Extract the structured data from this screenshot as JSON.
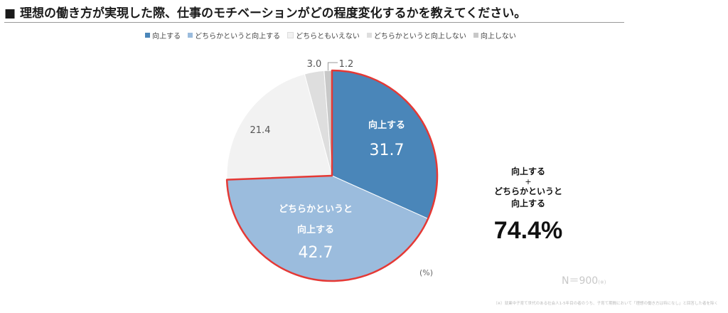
{
  "title": "■ 理想の働き方が実現した際、仕事のモチベーションがどの程度変化するかを教えてください。",
  "legend": [
    {
      "label": "向上する",
      "color": "#4a86b9"
    },
    {
      "label": "どちらかというと向上する",
      "color": "#9bbcdd"
    },
    {
      "label": "どちらともいえない",
      "color": "#f2f2f2"
    },
    {
      "label": "どちらかというと向上しない",
      "color": "#dedede"
    },
    {
      "label": "向上しない",
      "color": "#c8c8c8"
    }
  ],
  "chart_data": {
    "type": "pie",
    "unit": "(%)",
    "slices": [
      {
        "label": "向上する",
        "value": 31.7,
        "color": "#4a86b9",
        "label_color": "#ffffff"
      },
      {
        "label": "どちらかというと向上する",
        "value": 42.7,
        "color": "#9bbcdd",
        "label_color": "#ffffff"
      },
      {
        "label": "どちらともいえない",
        "value": 21.4,
        "color": "#f2f2f2",
        "label_color": "#555555"
      },
      {
        "label": "どちらかというと向上しない",
        "value": 3.0,
        "color": "#dedede",
        "label_color": "#555555"
      },
      {
        "label": "向上しない",
        "value": 1.2,
        "color": "#c8c8c8",
        "label_color": "#555555"
      }
    ],
    "highlight_color": "#e53935"
  },
  "summary": {
    "line1": "向上する",
    "plus": "+",
    "line2": "どちらかというと",
    "line3": "向上する",
    "value": "74.4%"
  },
  "unit_label": "(%)",
  "sample_size": {
    "main": "N＝900",
    "small": "(※)"
  },
  "note": "（※）就業中子育て世代のある社会人1-5年目の者のうち、子育て期間において「理想の働き方は特になし」と回答した者を除く"
}
